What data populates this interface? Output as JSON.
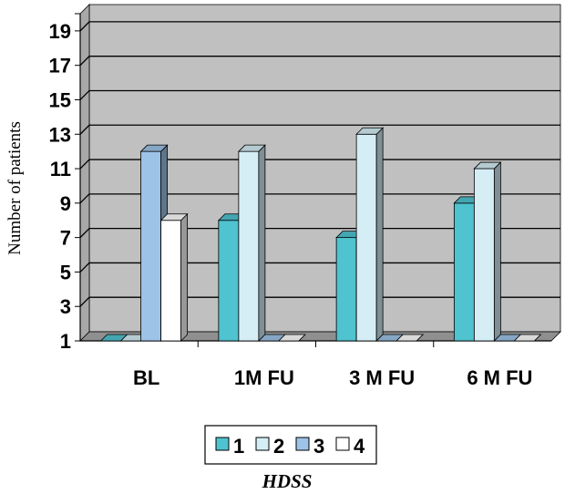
{
  "chart_data": {
    "type": "bar",
    "style": "3d-clustered-column",
    "title": "",
    "xlabel": "HDSS",
    "ylabel": "Number of patients",
    "categories": [
      "BL",
      "1M FU",
      "3 M FU",
      "6 M FU"
    ],
    "y_ticks": [
      1,
      3,
      5,
      7,
      9,
      11,
      13,
      15,
      17,
      19
    ],
    "ylim": [
      1,
      20
    ],
    "grid": true,
    "legend_position": "bottom",
    "series": [
      {
        "name": "1",
        "color": "#4fc3cf",
        "values": [
          1,
          8,
          7,
          9
        ]
      },
      {
        "name": "2",
        "color": "#d5eef6",
        "values": [
          1,
          12,
          13,
          11
        ]
      },
      {
        "name": "3",
        "color": "#9dc3e6",
        "values": [
          12,
          1,
          1,
          1
        ]
      },
      {
        "name": "4",
        "color": "#ffffff",
        "values": [
          8,
          1,
          1,
          1
        ]
      }
    ],
    "colors": {
      "plot_background": "#c0c0c0",
      "wall_side": "#a8a8a8",
      "floor": "#8f8f8f",
      "gridline": "#000000"
    }
  }
}
